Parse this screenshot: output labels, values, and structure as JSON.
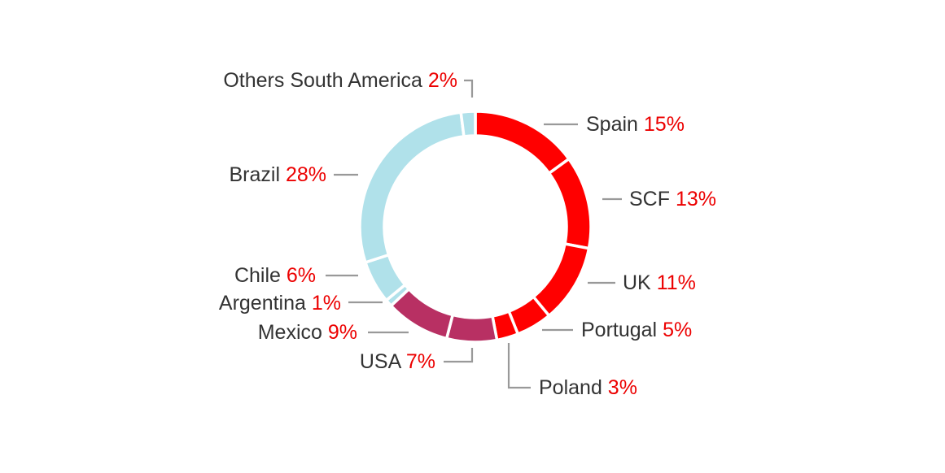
{
  "chart_data": {
    "type": "pie",
    "variant": "donut",
    "slices": [
      {
        "label": "Spain",
        "value": 15,
        "display": "15%",
        "color": "#ff0000"
      },
      {
        "label": "SCF",
        "value": 13,
        "display": "13%",
        "color": "#ff0000"
      },
      {
        "label": "UK",
        "value": 11,
        "display": "11%",
        "color": "#ff0000"
      },
      {
        "label": "Portugal",
        "value": 5,
        "display": "5%",
        "color": "#ff0000"
      },
      {
        "label": "Poland",
        "value": 3,
        "display": "3%",
        "color": "#ff0000"
      },
      {
        "label": "USA",
        "value": 7,
        "display": "7%",
        "color": "#b83063"
      },
      {
        "label": "Mexico",
        "value": 9,
        "display": "9%",
        "color": "#b83063"
      },
      {
        "label": "Argentina",
        "value": 1,
        "display": "1%",
        "color": "#b0e1ea"
      },
      {
        "label": "Chile",
        "value": 6,
        "display": "6%",
        "color": "#b0e1ea"
      },
      {
        "label": "Brazil",
        "value": 28,
        "display": "28%",
        "color": "#b0e1ea"
      },
      {
        "label": "Others South America",
        "value": 2,
        "display": "2%",
        "color": "#b0e1ea"
      }
    ]
  },
  "colors": {
    "label_text": "#333333",
    "percent_text": "#ec0000",
    "leader_line": "#999999",
    "separator": "#ffffff"
  }
}
